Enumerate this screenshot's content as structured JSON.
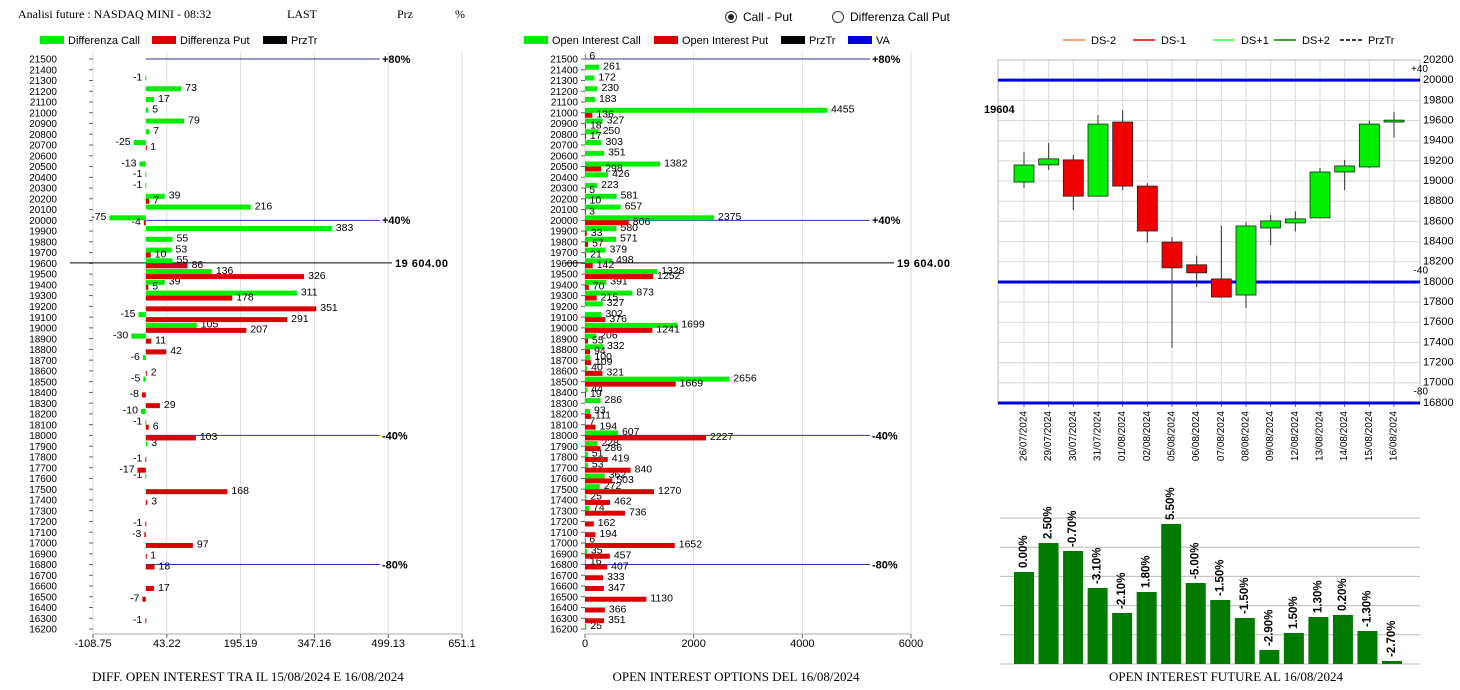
{
  "header": {
    "title": "Analisi future : NASDAQ MINI - 08:32",
    "col1": "LAST",
    "col2": "Prz",
    "col3": "%"
  },
  "controls": {
    "options": [
      "Call - Put",
      "Differenza Call Put"
    ],
    "selected": 0
  },
  "chart_data": [
    {
      "type": "hbar",
      "footer": "DIFF. OPEN INTEREST TRA IL 15/08/2024 E 16/08/2024",
      "categories": [
        21500,
        21400,
        21300,
        21200,
        21100,
        21000,
        20900,
        20800,
        20700,
        20600,
        20500,
        20400,
        20300,
        20200,
        20100,
        20000,
        19900,
        19800,
        19700,
        19600,
        19500,
        19400,
        19300,
        19200,
        19100,
        19000,
        18900,
        18800,
        18700,
        18600,
        18500,
        18400,
        18300,
        18200,
        18100,
        18000,
        17900,
        17800,
        17700,
        17600,
        17500,
        17400,
        17300,
        17200,
        17100,
        17000,
        16900,
        16800,
        16700,
        16600,
        16500,
        16400,
        16300,
        16200
      ],
      "series": [
        {
          "name": "Differenza Call",
          "color": "#00ee00",
          "values": [
            null,
            null,
            -1,
            73,
            17,
            5,
            79,
            7,
            -25,
            null,
            -13,
            -1,
            -1,
            39,
            216,
            -75,
            383,
            55,
            53,
            55,
            136,
            39,
            311,
            null,
            -15,
            105,
            -30,
            null,
            -6,
            null,
            -5,
            null,
            null,
            -10,
            -1,
            null,
            3,
            null,
            null,
            -1,
            null,
            null,
            null,
            null,
            null,
            null,
            null,
            null,
            null,
            null,
            null,
            null,
            null,
            null
          ]
        },
        {
          "name": "Differenza Put",
          "color": "#dd0000",
          "values": [
            null,
            null,
            null,
            null,
            null,
            null,
            null,
            null,
            1,
            null,
            null,
            null,
            null,
            7,
            null,
            -4,
            null,
            null,
            10,
            86,
            326,
            5,
            178,
            351,
            291,
            207,
            11,
            42,
            null,
            2,
            null,
            -8,
            29,
            null,
            6,
            103,
            null,
            -1,
            -17,
            null,
            168,
            3,
            null,
            -1,
            -3,
            97,
            1,
            18,
            null,
            17,
            -7,
            null,
            -1,
            null
          ]
        }
      ],
      "legend_extra": [
        {
          "name": "PrzTr",
          "color": "#000000"
        }
      ],
      "xlim": [
        -108.75,
        651.1
      ],
      "xticks": [
        -108.75,
        43.22,
        195.19,
        347.16,
        499.13,
        651.1
      ],
      "ref_lines": [
        {
          "value": 21500,
          "label": "+80%"
        },
        {
          "value": 20000,
          "label": "+40%"
        },
        {
          "value": 18000,
          "label": "-40%"
        },
        {
          "value": 16800,
          "label": "-80%"
        }
      ],
      "ref_color": "#3333aa",
      "price": {
        "value": 19604,
        "label": "19 604.00"
      }
    },
    {
      "type": "hbar",
      "footer": "OPEN INTEREST OPTIONS DEL 16/08/2024",
      "categories": [
        21500,
        21400,
        21300,
        21200,
        21100,
        21000,
        20900,
        20800,
        20700,
        20600,
        20500,
        20400,
        20300,
        20200,
        20100,
        20000,
        19900,
        19800,
        19700,
        19600,
        19500,
        19400,
        19300,
        19200,
        19100,
        19000,
        18900,
        18800,
        18700,
        18600,
        18500,
        18400,
        18300,
        18200,
        18100,
        18000,
        17900,
        17800,
        17700,
        17600,
        17500,
        17400,
        17300,
        17200,
        17100,
        17000,
        16900,
        16800,
        16700,
        16600,
        16500,
        16400,
        16300,
        16200
      ],
      "series": [
        {
          "name": "Open Interest Call",
          "color": "#00ee00",
          "values": [
            6,
            261,
            172,
            230,
            183,
            4455,
            327,
            250,
            303,
            351,
            1382,
            426,
            223,
            581,
            657,
            2375,
            580,
            571,
            379,
            498,
            1328,
            391,
            873,
            327,
            302,
            1699,
            206,
            332,
            100,
            40,
            2656,
            44,
            286,
            93,
            7,
            607,
            228,
            51,
            53,
            362,
            272,
            25,
            74,
            null,
            null,
            6,
            35,
            16,
            null,
            null,
            null,
            null,
            null,
            25
          ]
        },
        {
          "name": "Open Interest Put",
          "color": "#dd0000",
          "values": [
            null,
            null,
            null,
            null,
            null,
            136,
            18,
            17,
            null,
            null,
            298,
            null,
            5,
            10,
            3,
            806,
            33,
            57,
            21,
            142,
            1252,
            70,
            215,
            null,
            376,
            1241,
            55,
            94,
            109,
            321,
            1669,
            19,
            null,
            111,
            194,
            2227,
            286,
            419,
            840,
            503,
            1270,
            462,
            736,
            162,
            194,
            1652,
            457,
            407,
            333,
            347,
            1130,
            366,
            351,
            null
          ]
        }
      ],
      "legend_extra": [
        {
          "name": "PrzTr",
          "color": "#000000"
        },
        {
          "name": "VA",
          "color": "#0000dd"
        }
      ],
      "xlim": [
        0,
        6000
      ],
      "xticks": [
        0,
        2000,
        4000,
        6000
      ],
      "ref_lines": [
        {
          "value": 21500,
          "label": "+80%"
        },
        {
          "value": 20000,
          "label": "+40%"
        },
        {
          "value": 18000,
          "label": "-40%"
        },
        {
          "value": 16800,
          "label": "-80%"
        }
      ],
      "ref_color": "#3333aa",
      "price": {
        "value": 19604,
        "label": "19 604.00"
      }
    },
    {
      "type": "candlestick",
      "categories": [
        "26/07/2024",
        "29/07/2024",
        "30/07/2024",
        "31/07/2024",
        "01/08/2024",
        "02/08/2024",
        "05/08/2024",
        "06/08/2024",
        "07/08/2024",
        "08/08/2024",
        "09/08/2024",
        "12/08/2024",
        "13/08/2024",
        "14/08/2024",
        "15/08/2024",
        "16/08/2024"
      ],
      "open": [
        18990,
        19160,
        19210,
        18850,
        19585,
        18950,
        18395,
        18170,
        18030,
        17870,
        18535,
        18585,
        18635,
        19090,
        19140,
        19585
      ],
      "close": [
        19160,
        19220,
        18850,
        19565,
        18950,
        18505,
        18140,
        18090,
        17850,
        18555,
        18605,
        18625,
        19090,
        19150,
        19565,
        19604
      ],
      "high": [
        19288,
        19377,
        19260,
        19655,
        19705,
        18980,
        18446,
        18260,
        18555,
        18595,
        18664,
        18700,
        19130,
        19210,
        19600,
        19685
      ],
      "low": [
        18931,
        19110,
        18715,
        18850,
        18910,
        18390,
        17345,
        17950,
        17840,
        17740,
        18365,
        18500,
        18630,
        18910,
        19130,
        19430
      ],
      "up_color": "#00ee00",
      "down_color": "#ee0000",
      "legend": [
        {
          "name": "DS-2",
          "color": "#ff8040"
        },
        {
          "name": "DS-1",
          "color": "#dd0000"
        },
        {
          "name": "DS+1",
          "color": "#33ff33"
        },
        {
          "name": "DS+2",
          "color": "#008000"
        },
        {
          "name": "PrzTr",
          "color": "#000000",
          "dash": true
        }
      ],
      "ylim": [
        16800,
        20200
      ],
      "yticks": [
        16800,
        17000,
        17200,
        17400,
        17600,
        17800,
        18000,
        18200,
        18400,
        18600,
        18800,
        19000,
        19200,
        19400,
        19600,
        19800,
        20000,
        20200
      ],
      "grid": true,
      "ref_lines": [
        {
          "value": 20000,
          "label": "+40"
        },
        {
          "value": 18000,
          "label": "-40"
        },
        {
          "value": 16800,
          "label": "-80"
        }
      ],
      "ref_color": "#0000dd",
      "price": 19604
    },
    {
      "type": "bar",
      "footer": "OPEN INTEREST FUTURE AL 16/08/2024",
      "values": [
        92,
        121,
        113,
        76,
        51,
        72,
        140,
        81,
        64,
        46,
        14,
        31,
        47,
        49,
        33,
        3
      ],
      "annotations": [
        "0.00%",
        "2.50%",
        "-0.70%",
        "-3.10%",
        "-2.10%",
        "1.80%",
        "5.50%",
        "-5.00%",
        "-1.50%",
        "-1.50%",
        "-2.90%",
        "1.50%",
        "1.30%",
        "0.20%",
        "-1.30%",
        "-2.70%"
      ],
      "color": "#007a00"
    }
  ]
}
